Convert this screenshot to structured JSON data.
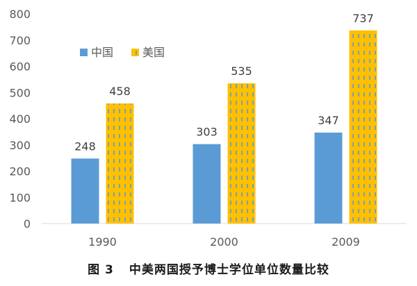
{
  "caption": {
    "figure_number": "图 3",
    "title": "中美两国授予博士学位单位数量比较"
  },
  "chart_data": {
    "type": "bar",
    "title": "",
    "xlabel": "",
    "ylabel": "",
    "categories": [
      "1990",
      "2000",
      "2009"
    ],
    "series": [
      {
        "name": "中国",
        "values": [
          248,
          303,
          347
        ],
        "color": "#5b9bd5",
        "pattern": "solid"
      },
      {
        "name": "美国",
        "values": [
          458,
          535,
          737
        ],
        "color": "#ffc000",
        "pattern": "dashed-vertical-blue"
      }
    ],
    "ylim": [
      0,
      800
    ],
    "yticks": [
      0,
      100,
      200,
      300,
      400,
      500,
      600,
      700,
      800
    ],
    "data_labels": true,
    "grid": false,
    "legend_position": "top-left"
  }
}
